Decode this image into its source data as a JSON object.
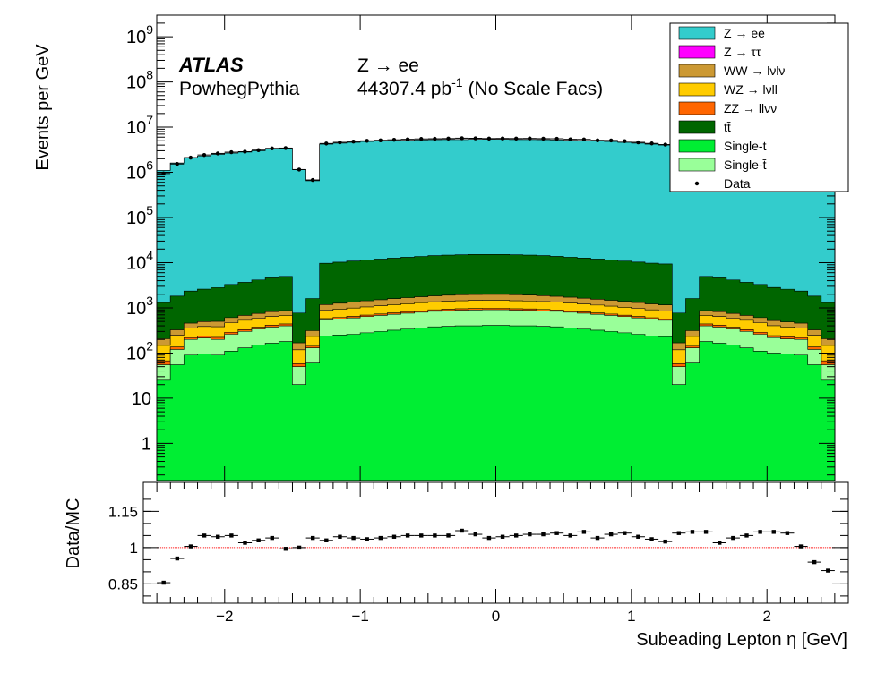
{
  "chart_data": [
    {
      "type": "area",
      "stacked": true,
      "log_y": true,
      "ylabel": "Events per GeV",
      "ylim": [
        0.15,
        3000000000
      ],
      "xlim": [
        -2.6,
        2.6
      ],
      "y_tick_labels": [
        "1",
        "10",
        "10^2",
        "10^3",
        "10^4",
        "10^5",
        "10^6",
        "10^7",
        "10^8",
        "10^9"
      ],
      "x_bin_edges": [
        -2.5,
        -2.4,
        -2.3,
        -2.2,
        -2.1,
        -2.0,
        -1.9,
        -1.8,
        -1.7,
        -1.6,
        -1.5,
        -1.4,
        -1.3,
        -1.2,
        -1.1,
        -1.0,
        -0.9,
        -0.8,
        -0.7,
        -0.6,
        -0.5,
        -0.4,
        -0.3,
        -0.2,
        -0.1,
        0.0,
        0.1,
        0.2,
        0.3,
        0.4,
        0.5,
        0.6,
        0.7,
        0.8,
        0.9,
        1.0,
        1.1,
        1.2,
        1.3,
        1.4,
        1.5,
        1.6,
        1.7,
        1.8,
        1.9,
        2.0,
        2.1,
        2.2,
        2.3,
        2.4,
        2.5
      ],
      "experiment_label": "ATLAS",
      "generator_label": "PowhegPythia",
      "channel_label": "Z → ee",
      "lumi_label": "44307.4 pb",
      "lumi_superscript": "-1",
      "lumi_suffix": "(No Scale Facs)",
      "legend_position": "top-right",
      "series": [
        {
          "name": "Single-t",
          "color": "#00ee33",
          "values": [
            25,
            55,
            90,
            95,
            90,
            110,
            130,
            150,
            165,
            180,
            20,
            60,
            240,
            250,
            260,
            280,
            300,
            320,
            340,
            360,
            380,
            390,
            400,
            400,
            410,
            410,
            400,
            400,
            390,
            380,
            360,
            340,
            320,
            300,
            280,
            260,
            240,
            230,
            20,
            60,
            180,
            165,
            150,
            130,
            110,
            100,
            95,
            90,
            55,
            25
          ]
        },
        {
          "name": "Single-t̄",
          "color": "#99ff99",
          "values": [
            30,
            65,
            110,
            120,
            110,
            150,
            170,
            190,
            210,
            220,
            30,
            70,
            300,
            320,
            340,
            360,
            380,
            400,
            420,
            440,
            460,
            480,
            490,
            500,
            500,
            500,
            490,
            480,
            470,
            460,
            440,
            420,
            400,
            380,
            360,
            340,
            320,
            300,
            30,
            70,
            220,
            210,
            190,
            170,
            150,
            120,
            110,
            110,
            65,
            30
          ]
        },
        {
          "name": "ZZ → llνν",
          "color": "#ff6600",
          "values": [
            12,
            16,
            18,
            22,
            22,
            28,
            30,
            34,
            38,
            40,
            8,
            12,
            40,
            45,
            48,
            50,
            52,
            55,
            58,
            60,
            62,
            64,
            65,
            66,
            66,
            66,
            65,
            64,
            62,
            60,
            58,
            55,
            52,
            50,
            48,
            45,
            42,
            40,
            8,
            12,
            40,
            38,
            34,
            30,
            28,
            22,
            22,
            18,
            16,
            12
          ]
        },
        {
          "name": "WZ → lνll",
          "color": "#ffcc00",
          "values": [
            80,
            110,
            140,
            150,
            160,
            180,
            200,
            210,
            230,
            240,
            60,
            90,
            300,
            320,
            340,
            360,
            380,
            400,
            420,
            440,
            460,
            470,
            480,
            490,
            490,
            490,
            480,
            470,
            460,
            440,
            420,
            400,
            380,
            360,
            340,
            320,
            300,
            290,
            60,
            90,
            240,
            230,
            210,
            200,
            180,
            160,
            150,
            140,
            110,
            80
          ]
        },
        {
          "name": "WW → lνlν",
          "color": "#cc9933",
          "values": [
            60,
            80,
            100,
            110,
            120,
            140,
            150,
            170,
            180,
            190,
            50,
            80,
            300,
            330,
            360,
            380,
            400,
            420,
            440,
            460,
            480,
            500,
            510,
            520,
            520,
            520,
            510,
            500,
            480,
            460,
            440,
            420,
            400,
            380,
            360,
            340,
            320,
            300,
            50,
            80,
            190,
            180,
            170,
            150,
            140,
            120,
            110,
            100,
            80,
            60
          ]
        },
        {
          "name": "tt̄",
          "color": "#006600",
          "values": [
            1100,
            1500,
            1900,
            2100,
            2300,
            2700,
            3000,
            3400,
            3800,
            4100,
            600,
            1300,
            8500,
            9000,
            9500,
            10000,
            10500,
            11000,
            11500,
            12000,
            12500,
            12800,
            13000,
            13200,
            13200,
            13200,
            13000,
            12800,
            12500,
            12000,
            11500,
            11000,
            10500,
            10000,
            9500,
            9000,
            8500,
            8200,
            600,
            1300,
            4100,
            3800,
            3400,
            3000,
            2700,
            2300,
            2100,
            1900,
            1500,
            1100
          ]
        },
        {
          "name": "Z → ee",
          "color": "#33cccc",
          "values": [
            1100000,
            1600000,
            2100000,
            2300000,
            2500000,
            2650000,
            2800000,
            3000000,
            3250000,
            3450000,
            1150000,
            650000,
            4200000,
            4400000,
            4600000,
            4800000,
            4900000,
            5000000,
            5100000,
            5200000,
            5250000,
            5300000,
            5300000,
            5350000,
            5350000,
            5350000,
            5300000,
            5300000,
            5250000,
            5200000,
            5100000,
            5000000,
            4900000,
            4800000,
            4600000,
            4400000,
            4200000,
            4000000,
            1150000,
            650000,
            3450000,
            3250000,
            3000000,
            2800000,
            2650000,
            2500000,
            2300000,
            2100000,
            1600000,
            1100000
          ]
        },
        {
          "name": "Z → ττ",
          "color": "#ff00ff",
          "values": [
            150,
            250,
            300,
            310,
            320,
            370,
            400,
            430,
            470,
            480,
            100,
            150,
            600,
            650,
            700,
            750,
            780,
            800,
            820,
            850,
            870,
            880,
            890,
            900,
            900,
            900,
            890,
            880,
            870,
            850,
            820,
            800,
            780,
            750,
            700,
            650,
            600,
            580,
            100,
            150,
            480,
            470,
            430,
            400,
            370,
            320,
            310,
            300,
            250,
            150
          ]
        }
      ],
      "data_series": {
        "name": "Data",
        "marker": "point",
        "color": "#000000"
      }
    },
    {
      "type": "scatter",
      "ylabel": "Data/MC",
      "xlabel": "Subeading Lepton η [GeV]",
      "xlim": [
        -2.6,
        2.6
      ],
      "ylim": [
        0.77,
        1.27
      ],
      "y_ticks": [
        0.85,
        1,
        1.15
      ],
      "y_tick_labels": [
        "0.85",
        "1",
        "1.15"
      ],
      "x_ticks": [
        -2,
        -1,
        0,
        1,
        2
      ],
      "x_tick_labels": [
        "−2",
        "−1",
        "0",
        "1",
        "2"
      ],
      "reference_line": 1.0,
      "reference_color": "#ff0000",
      "x": [
        -2.45,
        -2.35,
        -2.25,
        -2.15,
        -2.05,
        -1.95,
        -1.85,
        -1.75,
        -1.65,
        -1.55,
        -1.45,
        -1.35,
        -1.25,
        -1.15,
        -1.05,
        -0.95,
        -0.85,
        -0.75,
        -0.65,
        -0.55,
        -0.45,
        -0.35,
        -0.25,
        -0.15,
        -0.05,
        0.05,
        0.15,
        0.25,
        0.35,
        0.45,
        0.55,
        0.65,
        0.75,
        0.85,
        0.95,
        1.05,
        1.15,
        1.25,
        1.35,
        1.45,
        1.55,
        1.65,
        1.75,
        1.85,
        1.95,
        2.05,
        2.15,
        2.25,
        2.35,
        2.45
      ],
      "values": [
        0.855,
        0.955,
        1.005,
        1.05,
        1.045,
        1.05,
        1.02,
        1.03,
        1.04,
        0.995,
        1.0,
        1.04,
        1.03,
        1.045,
        1.04,
        1.035,
        1.04,
        1.045,
        1.05,
        1.05,
        1.05,
        1.05,
        1.07,
        1.055,
        1.04,
        1.045,
        1.05,
        1.055,
        1.055,
        1.06,
        1.05,
        1.065,
        1.04,
        1.055,
        1.06,
        1.045,
        1.035,
        1.025,
        1.06,
        1.065,
        1.065,
        1.02,
        1.04,
        1.05,
        1.065,
        1.065,
        1.06,
        1.005,
        0.94,
        0.905
      ]
    }
  ]
}
